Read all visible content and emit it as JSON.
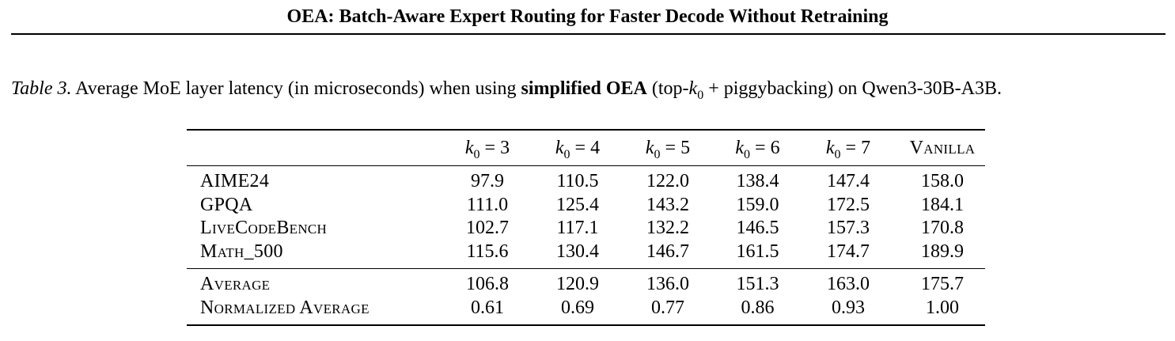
{
  "header": {
    "running_title": "OEA: Batch-Aware Expert Routing for Faster Decode Without Retraining"
  },
  "caption": {
    "label": "Table 3.",
    "text_before": " Average MoE layer latency (in microseconds) when using ",
    "bold": "simplified OEA",
    "text_after_1": " (top-",
    "k_var": "k",
    "k_sub": "0",
    "text_after_2": " + piggybacking) on Qwen3-30B-A3B."
  },
  "table": {
    "columns": [
      {
        "var": "k",
        "sub": "0",
        "rest": " = 3"
      },
      {
        "var": "k",
        "sub": "0",
        "rest": " = 4"
      },
      {
        "var": "k",
        "sub": "0",
        "rest": " = 5"
      },
      {
        "var": "k",
        "sub": "0",
        "rest": " = 6"
      },
      {
        "var": "k",
        "sub": "0",
        "rest": " = 7"
      },
      {
        "label": "Vanilla"
      }
    ],
    "rows": [
      {
        "name": "AIME24",
        "values": [
          "97.9",
          "110.5",
          "122.0",
          "138.4",
          "147.4",
          "158.0"
        ]
      },
      {
        "name": "GPQA",
        "values": [
          "111.0",
          "125.4",
          "143.2",
          "159.0",
          "172.5",
          "184.1"
        ]
      },
      {
        "name": "LiveCodeBench",
        "values": [
          "102.7",
          "117.1",
          "132.2",
          "146.5",
          "157.3",
          "170.8"
        ]
      },
      {
        "name": "Math_500",
        "values": [
          "115.6",
          "130.4",
          "146.7",
          "161.5",
          "174.7",
          "189.9"
        ]
      }
    ],
    "summary": [
      {
        "name": "Average",
        "values": [
          "106.8",
          "120.9",
          "136.0",
          "151.3",
          "163.0",
          "175.7"
        ]
      },
      {
        "name": "Normalized Average",
        "values": [
          "0.61",
          "0.69",
          "0.77",
          "0.86",
          "0.93",
          "1.00"
        ]
      }
    ]
  }
}
